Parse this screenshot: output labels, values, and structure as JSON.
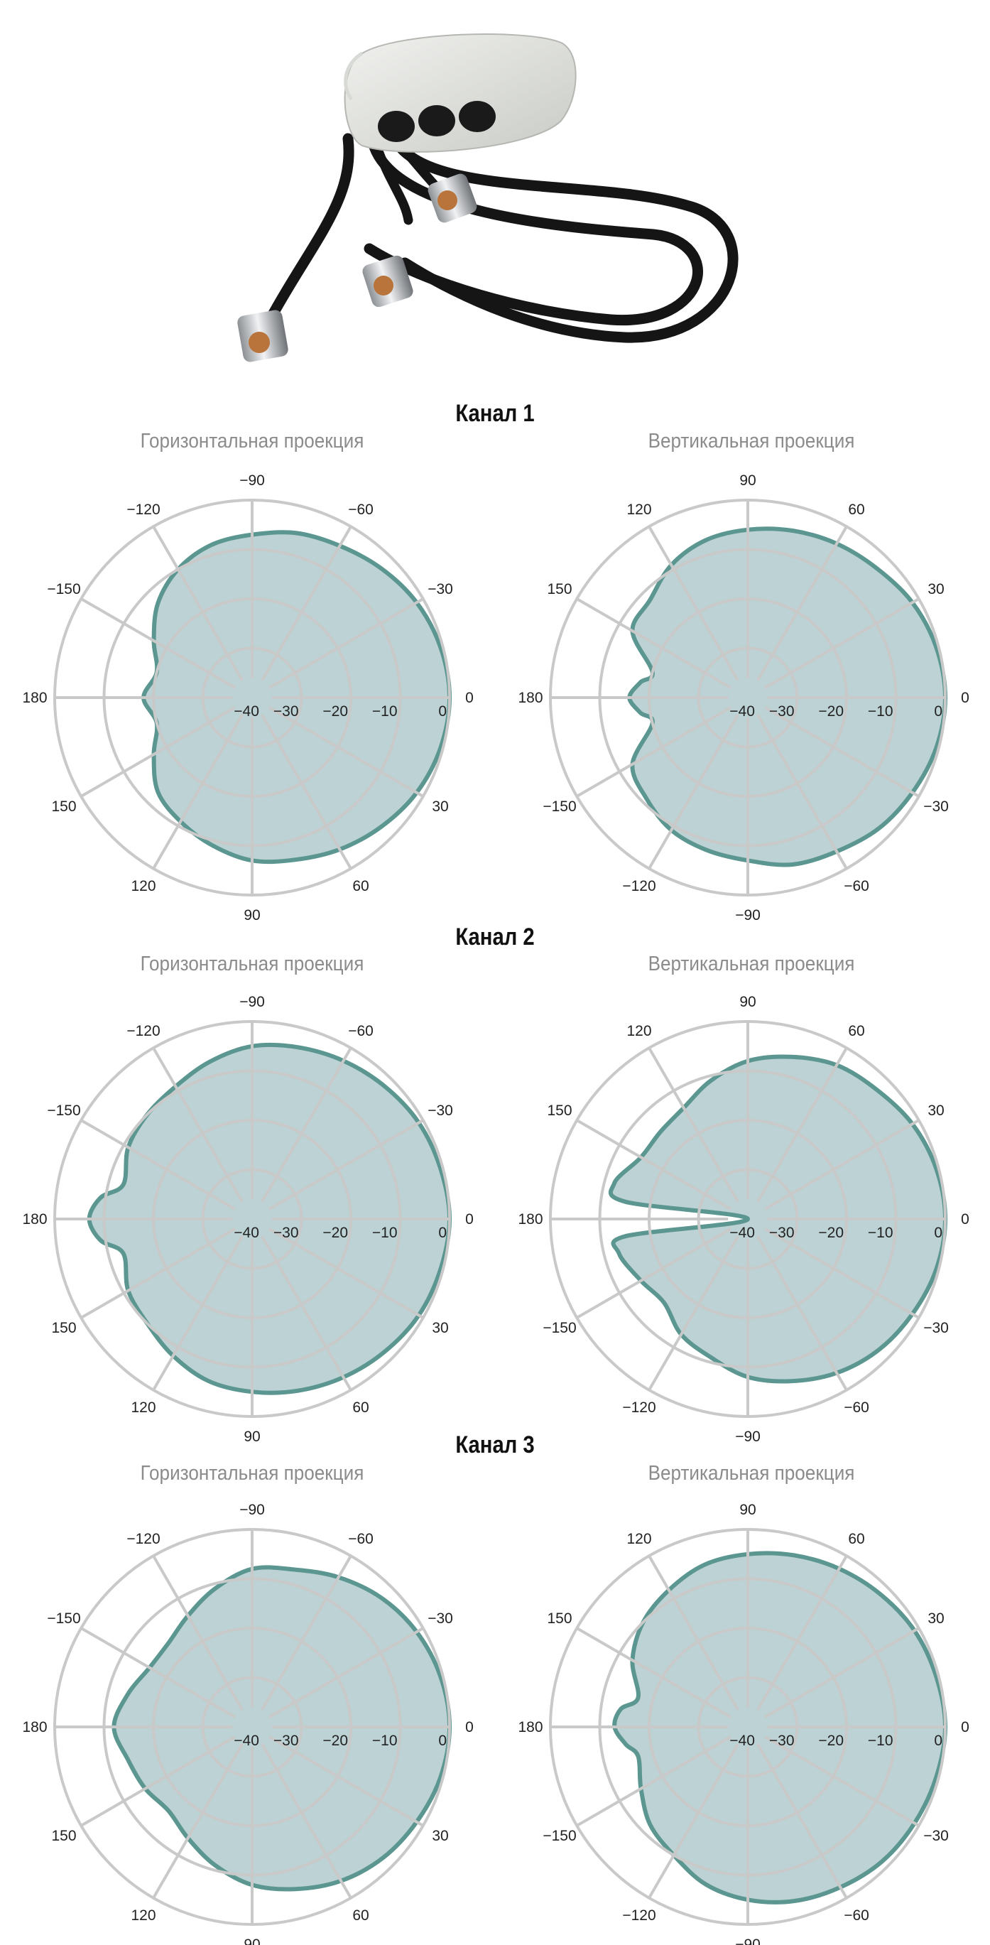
{
  "colors": {
    "pattern_fill": "#bcd2d4",
    "pattern_stroke": "#5b9690",
    "grid": "#c9c9c9",
    "text": "#222222",
    "subtitle": "#8b8b8b"
  },
  "photo": {
    "icon": "antenna-with-three-cables-and-n-connectors"
  },
  "chart_data": [
    {
      "type": "polar",
      "channel_title": "Канал 1",
      "subtitle": "Горизонтальная проекция",
      "angle_labels": [
        "0",
        "−30",
        "−60",
        "−90",
        "−120",
        "−150",
        "180",
        "150",
        "120",
        "90",
        "60",
        "30"
      ],
      "radial_ticks": [
        "0",
        "−10",
        "−20",
        "−30",
        "−40"
      ],
      "rlim": [
        -40,
        0
      ],
      "angles_deg": [
        0,
        15,
        30,
        45,
        60,
        75,
        90,
        105,
        120,
        135,
        150,
        165,
        180,
        195,
        210,
        225,
        240,
        255,
        270,
        285,
        300,
        315,
        330,
        345
      ],
      "gain_db": [
        0,
        -0.5,
        -1.5,
        -3,
        -4.5,
        -5.5,
        -7,
        -8,
        -10,
        -13,
        -17,
        -20,
        -18,
        -20,
        -17,
        -13,
        -11,
        -9,
        -7,
        -6,
        -4.5,
        -3,
        -1.5,
        -0.5
      ]
    },
    {
      "type": "polar",
      "channel_title": "",
      "subtitle": "Вертикальная проекция",
      "angle_labels": [
        "0",
        "30",
        "60",
        "90",
        "120",
        "150",
        "180",
        "−150",
        "−120",
        "−90",
        "−60",
        "−30"
      ],
      "radial_ticks": [
        "0",
        "−10",
        "−20",
        "−30",
        "−40"
      ],
      "rlim": [
        -40,
        0
      ],
      "angles_deg": [
        0,
        15,
        30,
        45,
        60,
        75,
        90,
        105,
        120,
        135,
        150,
        165,
        172,
        180,
        188,
        195,
        210,
        225,
        240,
        255,
        270,
        285,
        300,
        315,
        330,
        345
      ],
      "gain_db": [
        0,
        -0.5,
        -1.5,
        -3,
        -4,
        -5,
        -6,
        -7,
        -9,
        -12,
        -13,
        -20,
        -18,
        -16,
        -18,
        -20,
        -13,
        -11,
        -9,
        -8,
        -7,
        -5,
        -4,
        -2.5,
        -1.5,
        -0.5
      ]
    },
    {
      "type": "polar",
      "channel_title": "Канал 2",
      "subtitle": "Горизонтальная проекция",
      "angle_labels": [
        "0",
        "−30",
        "−60",
        "−90",
        "−120",
        "−150",
        "180",
        "150",
        "120",
        "90",
        "60",
        "30"
      ],
      "radial_ticks": [
        "0",
        "−10",
        "−20",
        "−30",
        "−40"
      ],
      "rlim": [
        -40,
        0
      ],
      "angles_deg": [
        0,
        15,
        30,
        45,
        60,
        75,
        90,
        105,
        120,
        135,
        150,
        165,
        172,
        180,
        188,
        195,
        210,
        225,
        240,
        255,
        270,
        285,
        300,
        315,
        330,
        345
      ],
      "gain_db": [
        0,
        -0.5,
        -1,
        -2,
        -3,
        -4,
        -5,
        -7,
        -9,
        -10,
        -11,
        -13,
        -9,
        -7,
        -9,
        -13,
        -11,
        -10,
        -8,
        -6,
        -5,
        -4,
        -3,
        -2,
        -1,
        -0.5
      ]
    },
    {
      "type": "polar",
      "channel_title": "",
      "subtitle": "Вертикальная проекция",
      "angle_labels": [
        "0",
        "30",
        "60",
        "90",
        "120",
        "150",
        "180",
        "−150",
        "−120",
        "−90",
        "−60",
        "−30"
      ],
      "radial_ticks": [
        "0",
        "−10",
        "−20",
        "−30",
        "−40"
      ],
      "rlim": [
        -40,
        0
      ],
      "angles_deg": [
        0,
        15,
        30,
        45,
        60,
        75,
        90,
        105,
        120,
        135,
        150,
        165,
        172,
        180,
        188,
        195,
        210,
        225,
        240,
        255,
        270,
        285,
        300,
        315,
        330,
        345
      ],
      "gain_db": [
        0,
        -0.5,
        -1.5,
        -3,
        -4,
        -6,
        -8,
        -11,
        -14,
        -15,
        -15,
        -12,
        -15,
        -40,
        -15,
        -13,
        -15,
        -16,
        -13,
        -11,
        -8,
        -6,
        -4,
        -2.5,
        -1.5,
        -0.5
      ]
    },
    {
      "type": "polar",
      "channel_title": "Канал 3",
      "subtitle": "Горизонтальная проекция",
      "angle_labels": [
        "0",
        "−30",
        "−60",
        "−90",
        "−120",
        "−150",
        "180",
        "150",
        "120",
        "90",
        "60",
        "30"
      ],
      "radial_ticks": [
        "0",
        "−10",
        "−20",
        "−30",
        "−40"
      ],
      "rlim": [
        -40,
        0
      ],
      "angles_deg": [
        0,
        15,
        30,
        45,
        60,
        75,
        90,
        105,
        120,
        135,
        150,
        165,
        180,
        195,
        210,
        225,
        240,
        255,
        270,
        285,
        300,
        315,
        330,
        345
      ],
      "gain_db": [
        0,
        -0.5,
        -1.5,
        -3,
        -5,
        -7,
        -8,
        -11,
        -14,
        -16,
        -16,
        -14,
        -12,
        -14,
        -15,
        -16,
        -14,
        -11,
        -8,
        -6,
        -4,
        -2.5,
        -1.5,
        -0.5
      ]
    },
    {
      "type": "polar",
      "channel_title": "",
      "subtitle": "Вертикальная проекция",
      "angle_labels": [
        "0",
        "30",
        "60",
        "90",
        "120",
        "150",
        "180",
        "−150",
        "−120",
        "−90",
        "−60",
        "−30"
      ],
      "radial_ticks": [
        "0",
        "−10",
        "−20",
        "−30",
        "−40"
      ],
      "rlim": [
        -40,
        0
      ],
      "angles_deg": [
        0,
        15,
        30,
        45,
        60,
        75,
        90,
        105,
        120,
        135,
        150,
        165,
        172,
        180,
        188,
        195,
        210,
        225,
        240,
        255,
        270,
        285,
        300,
        315,
        330,
        345
      ],
      "gain_db": [
        0,
        -0.5,
        -1,
        -2,
        -3,
        -4,
        -5,
        -6,
        -8,
        -10,
        -13,
        -17,
        -14,
        -13,
        -15,
        -17,
        -15,
        -12,
        -10,
        -7,
        -5,
        -3.5,
        -2.5,
        -1.5,
        -1,
        -0.5
      ]
    }
  ]
}
